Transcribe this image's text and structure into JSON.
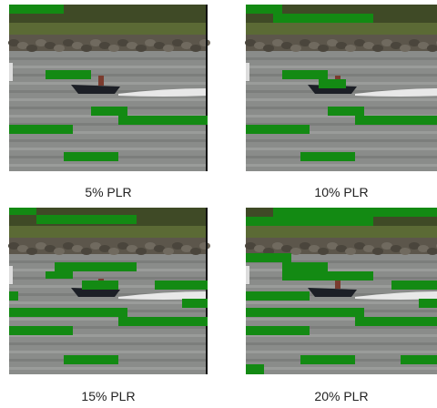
{
  "panels": [
    {
      "caption": "5% PLR"
    },
    {
      "caption": "10% PLR"
    },
    {
      "caption": "15% PLR"
    },
    {
      "caption": "20% PLR"
    }
  ]
}
